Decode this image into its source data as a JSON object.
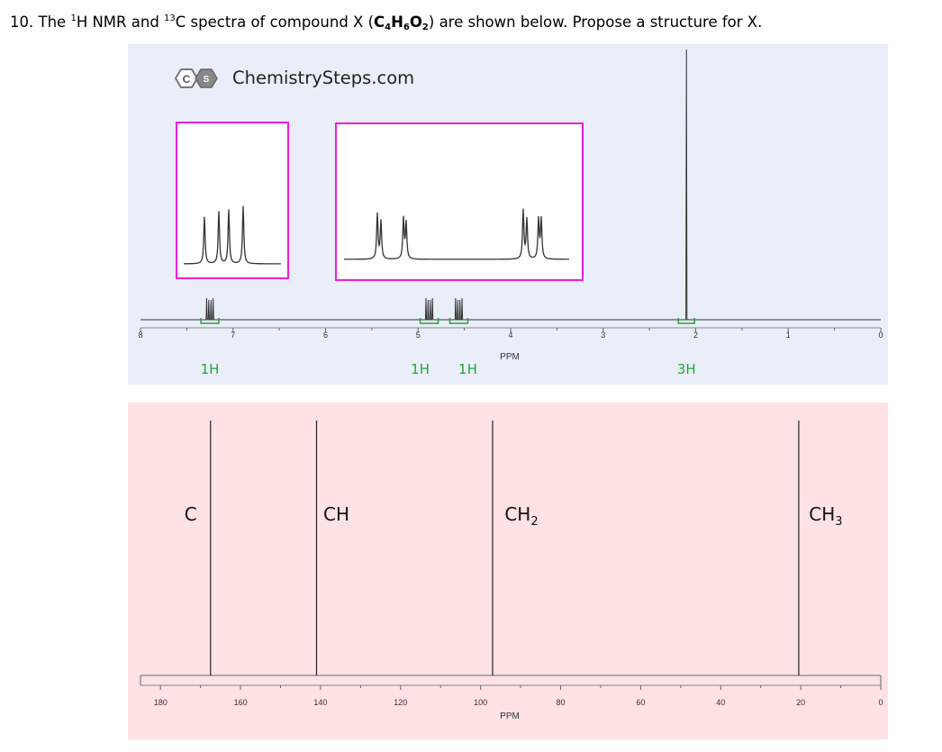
{
  "question": {
    "number": "10.",
    "pre": " The ",
    "h_sup": "1",
    "h_text": "H NMR and ",
    "c_sup": "13",
    "c_text": "C spectra of compound X (",
    "formula": {
      "c": "C",
      "c_n": "4",
      "h": "H",
      "h_n": "6",
      "o": "O",
      "o_n": "2"
    },
    "post": ") are shown below. Propose a structure for X."
  },
  "watermark": {
    "logo_c": "C",
    "logo_s": "S",
    "text": "ChemistrySteps.com"
  },
  "colors": {
    "h_panel_bg": "#eaeef9",
    "c_panel_bg": "#fee2e4",
    "integration": "#21a63b",
    "inset_border": "#ee1ed8",
    "trace": "#333333"
  },
  "chart_data": [
    {
      "type": "line",
      "spectrum": "1H NMR",
      "xlabel": "PPM",
      "xlim": [
        8,
        0
      ],
      "x_reversed": true,
      "x_ticks": [
        "8",
        "7",
        "6",
        "5",
        "4",
        "3",
        "2",
        "1",
        "0"
      ],
      "peaks": [
        {
          "ppm": 7.25,
          "multiplicity": "dd",
          "integration": "1H"
        },
        {
          "ppm": 4.88,
          "multiplicity": "dd",
          "integration": "1H"
        },
        {
          "ppm": 4.56,
          "multiplicity": "dd",
          "integration": "1H"
        },
        {
          "ppm": 2.1,
          "multiplicity": "s",
          "integration": "3H"
        }
      ]
    },
    {
      "type": "line",
      "spectrum": "13C NMR",
      "xlabel": "PPM",
      "xlim": [
        185,
        0
      ],
      "x_reversed": true,
      "x_ticks": [
        "180",
        "160",
        "140",
        "120",
        "100",
        "80",
        "60",
        "40",
        "20",
        "0"
      ],
      "peaks": [
        {
          "ppm": 167.5,
          "label_main": "C",
          "label_sub": ""
        },
        {
          "ppm": 141,
          "label_main": "CH",
          "label_sub": ""
        },
        {
          "ppm": 97,
          "label_main": "CH",
          "label_sub": "2"
        },
        {
          "ppm": 20.5,
          "label_main": "CH",
          "label_sub": "3"
        }
      ]
    }
  ]
}
